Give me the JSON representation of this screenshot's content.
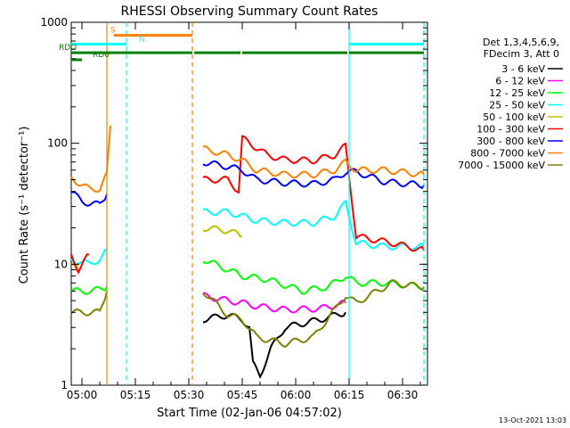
{
  "chart_data": {
    "type": "line",
    "title": "RHESSI Observing Summary Count Rates",
    "xlabel": "Start Time (02-Jan-06 04:57:02)",
    "ylabel": "Count Rate (s⁻¹ detector⁻¹)",
    "y_scale": "log",
    "ylim": [
      1,
      1000
    ],
    "xlim_minutes_after_start": [
      0,
      100
    ],
    "x_ticks": [
      {
        "label": "05:00",
        "t": 3
      },
      {
        "label": "05:15",
        "t": 18
      },
      {
        "label": "05:30",
        "t": 33
      },
      {
        "label": "05:45",
        "t": 48
      },
      {
        "label": "06:00",
        "t": 63
      },
      {
        "label": "06:15",
        "t": 78
      },
      {
        "label": "06:30",
        "t": 93
      }
    ],
    "y_ticks": [
      {
        "label": "1",
        "v": 1
      },
      {
        "label": "10",
        "v": 10
      },
      {
        "label": "100",
        "v": 100
      },
      {
        "label": "1000",
        "v": 1000
      }
    ],
    "legend_header": [
      "Det 1,3,4,5,6,9,",
      "FDecim 3, Att 0"
    ],
    "timestamp": "13-Oct-2021 13:03",
    "flags": [
      {
        "label": "S",
        "color": "#ff8000",
        "level": 780,
        "segments": [
          [
            12,
            34
          ]
        ],
        "label_at": 11
      },
      {
        "label": "N",
        "color": "#00ffff",
        "level": 660,
        "segments": [
          [
            0,
            15.5
          ],
          [
            78,
            99
          ]
        ],
        "label_at": 19
      },
      {
        "label": "RDO",
        "color": "#008000",
        "level": 560,
        "segments": [
          [
            0,
            34
          ],
          [
            34.5,
            47.5
          ],
          [
            48,
            77.5
          ],
          [
            78,
            99
          ]
        ],
        "label_at": -3.5
      },
      {
        "label": "RD6",
        "color": "#008000",
        "level": 490,
        "segments": [
          [
            0,
            3
          ]
        ],
        "label_at": 6
      }
    ],
    "vertical_markers": [
      {
        "t": 10,
        "color": "#ff8000",
        "style": "solid"
      },
      {
        "t": 15.5,
        "color": "#00ffff",
        "style": "dashed"
      },
      {
        "t": 34,
        "color": "#ff8000",
        "style": "dashed"
      },
      {
        "t": 78,
        "color": "#00ffff",
        "style": "solid"
      },
      {
        "t": 99,
        "color": "#00ffff",
        "style": "dashed"
      }
    ],
    "series": [
      {
        "name": "3 - 6 keV",
        "color": "#000000",
        "points": [
          [
            37,
            3.5
          ],
          [
            44,
            3.8
          ],
          [
            48,
            3.5
          ],
          [
            50,
            3.0
          ],
          [
            51,
            1.5
          ],
          [
            53,
            1.2
          ],
          [
            56,
            2.0
          ],
          [
            60,
            3.0
          ],
          [
            70,
            3.5
          ],
          [
            77,
            4.0
          ]
        ]
      },
      {
        "name": "6 - 12 keV",
        "color": "#ff00ff",
        "points": [
          [
            37,
            5.5
          ],
          [
            44,
            5.0
          ],
          [
            48,
            4.8
          ],
          [
            52,
            4.5
          ],
          [
            60,
            4.2
          ],
          [
            70,
            4.3
          ],
          [
            77,
            4.8
          ]
        ]
      },
      {
        "name": "12 - 25 keV",
        "color": "#00ff00",
        "points": [
          [
            0,
            6
          ],
          [
            6,
            6
          ],
          [
            10,
            6.5
          ],
          [
            37,
            11
          ],
          [
            44,
            9
          ],
          [
            48,
            8
          ],
          [
            55,
            7.5
          ],
          [
            65,
            6.0
          ],
          [
            72,
            6.5
          ],
          [
            77,
            8
          ],
          [
            80,
            7
          ],
          [
            88,
            7
          ],
          [
            99,
            6.5
          ]
        ]
      },
      {
        "name": "25 - 50 keV",
        "color": "#00ffff",
        "points": [
          [
            0,
            11
          ],
          [
            5,
            10
          ],
          [
            8,
            11
          ],
          [
            10,
            13
          ],
          [
            37,
            27
          ],
          [
            44,
            27
          ],
          [
            48,
            25
          ],
          [
            52,
            23
          ],
          [
            60,
            22
          ],
          [
            68,
            22
          ],
          [
            74,
            25
          ],
          [
            77,
            32
          ],
          [
            80,
            15
          ],
          [
            88,
            14
          ],
          [
            99,
            14
          ]
        ]
      },
      {
        "name": "50 - 100 keV",
        "color": "#bfbf00",
        "points": [
          [
            0,
            10
          ],
          [
            2,
            9
          ],
          [
            37,
            20
          ],
          [
            44,
            19
          ],
          [
            48,
            17
          ]
        ]
      },
      {
        "name": "100 - 300 keV",
        "color": "#ff0000",
        "points": [
          [
            0,
            12
          ],
          [
            2,
            9
          ],
          [
            5,
            12
          ],
          [
            37,
            50
          ],
          [
            44,
            50
          ],
          [
            47,
            40
          ],
          [
            48,
            110
          ],
          [
            55,
            80
          ],
          [
            60,
            73
          ],
          [
            68,
            72
          ],
          [
            74,
            80
          ],
          [
            77,
            95
          ],
          [
            80,
            17
          ],
          [
            90,
            15
          ],
          [
            99,
            13
          ]
        ]
      },
      {
        "name": "300 - 800 keV",
        "color": "#0000ff",
        "points": [
          [
            0,
            40
          ],
          [
            3,
            33
          ],
          [
            5,
            32
          ],
          [
            8,
            31
          ],
          [
            10,
            38
          ],
          [
            37,
            70
          ],
          [
            44,
            64
          ],
          [
            48,
            60
          ],
          [
            52,
            50
          ],
          [
            60,
            47
          ],
          [
            68,
            46
          ],
          [
            74,
            50
          ],
          [
            77,
            58
          ],
          [
            80,
            58
          ],
          [
            88,
            48
          ],
          [
            99,
            45
          ]
        ]
      },
      {
        "name": "800 - 7000 keV",
        "color": "#ff8000",
        "points": [
          [
            0,
            52
          ],
          [
            3,
            45
          ],
          [
            5,
            42
          ],
          [
            8,
            42
          ],
          [
            10,
            55
          ],
          [
            11,
            140
          ],
          [
            37,
            90
          ],
          [
            44,
            80
          ],
          [
            48,
            72
          ],
          [
            52,
            60
          ],
          [
            60,
            55
          ],
          [
            68,
            55
          ],
          [
            74,
            60
          ],
          [
            77,
            70
          ],
          [
            80,
            60
          ],
          [
            88,
            60
          ],
          [
            99,
            55
          ]
        ]
      },
      {
        "name": "7000 - 15000 keV",
        "color": "#808000",
        "points": [
          [
            0,
            4
          ],
          [
            8,
            4
          ],
          [
            10,
            6
          ],
          [
            37,
            6
          ],
          [
            44,
            3.8
          ],
          [
            48,
            3.5
          ],
          [
            52,
            2.5
          ],
          [
            60,
            2.2
          ],
          [
            68,
            2.5
          ],
          [
            77,
            5.5
          ],
          [
            80,
            4.8
          ],
          [
            90,
            7
          ],
          [
            99,
            6.5
          ]
        ]
      }
    ]
  }
}
